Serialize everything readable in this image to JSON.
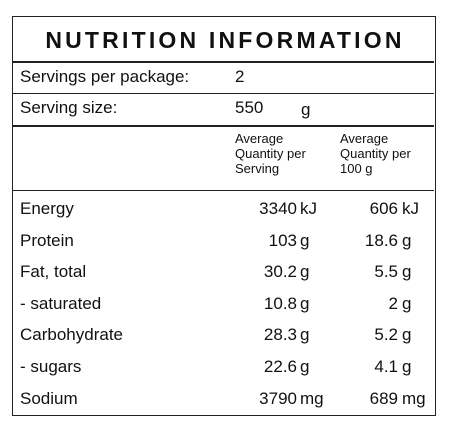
{
  "title": "NUTRITION INFORMATION",
  "servings_per_package": {
    "label": "Servings per package:",
    "value": "2"
  },
  "serving_size": {
    "label": "Serving size:",
    "value": "550",
    "unit": "g"
  },
  "column_headers": {
    "per_serving": "Average\nQuantity per\nServing",
    "per_100g": "Average\nQuantity per\n100 g"
  },
  "rows": [
    {
      "name": "Energy",
      "per_serving": "3340",
      "per_serving_unit": "kJ",
      "per_100g": "606",
      "per_100g_unit": "kJ"
    },
    {
      "name": "Protein",
      "per_serving": "103",
      "per_serving_unit": "g",
      "per_100g": "18.6",
      "per_100g_unit": "g"
    },
    {
      "name": "Fat, total",
      "per_serving": "30.2",
      "per_serving_unit": "g",
      "per_100g": "5.5",
      "per_100g_unit": "g"
    },
    {
      "name": "- saturated",
      "per_serving": "10.8",
      "per_serving_unit": "g",
      "per_100g": "2",
      "per_100g_unit": "g"
    },
    {
      "name": "Carbohydrate",
      "per_serving": "28.3",
      "per_serving_unit": "g",
      "per_100g": "5.2",
      "per_100g_unit": "g"
    },
    {
      "name": "- sugars",
      "per_serving": "22.6",
      "per_serving_unit": "g",
      "per_100g": "4.1",
      "per_100g_unit": "g"
    },
    {
      "name": "Sodium",
      "per_serving": "3790",
      "per_serving_unit": "mg",
      "per_100g": "689",
      "per_100g_unit": "mg"
    }
  ]
}
